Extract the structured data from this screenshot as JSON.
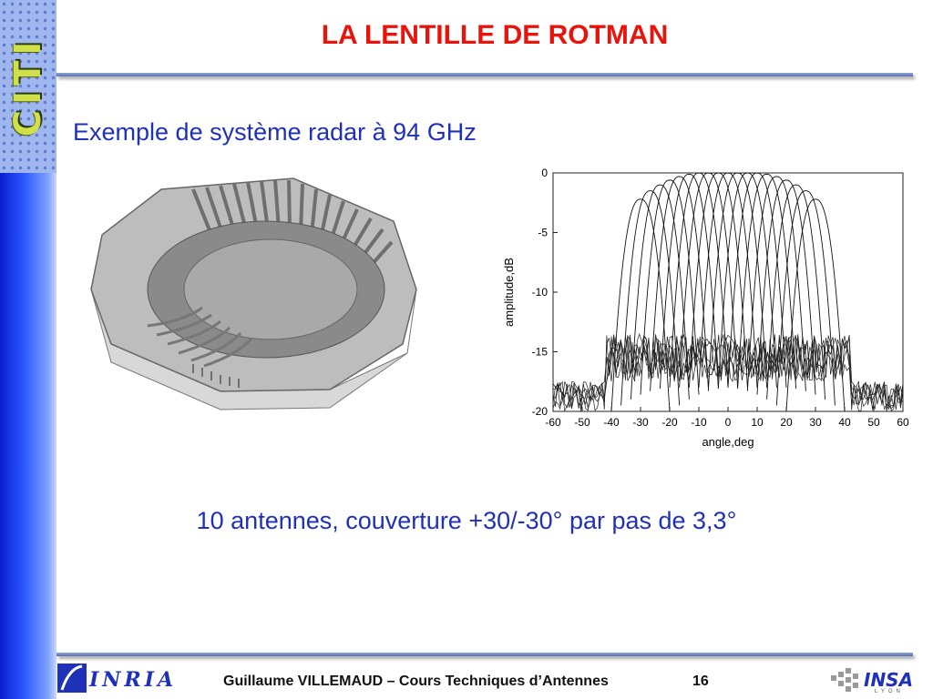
{
  "sidebar": {
    "logo_text": "CITI"
  },
  "slide": {
    "title": "LA LENTILLE DE ROTMAN",
    "subtitle": "Exemple de système radar à 94 GHz",
    "caption": "10 antennes, couverture +30/-30° par pas de 3,3°"
  },
  "footer": {
    "author_text": "Guillaume VILLEMAUD – Cours Techniques d’Antennes",
    "page_number": "16",
    "inria_text": "INRIA",
    "insa_text": "INSA",
    "lyon_text": "LYON"
  },
  "colors": {
    "title": "#e8140c",
    "text": "#1f31b8",
    "sidebar": "#2f5bff"
  },
  "chart_data": {
    "type": "line",
    "xlabel": "angle,deg",
    "ylabel": "amplitude,dB",
    "xlim": [
      -60,
      60
    ],
    "ylim": [
      -20,
      0
    ],
    "x_ticks": [
      -60,
      -50,
      -40,
      -30,
      -20,
      -10,
      0,
      10,
      20,
      30,
      40,
      50,
      60
    ],
    "y_ticks": [
      0,
      -5,
      -10,
      -15,
      -20
    ],
    "beam_peaks_deg": [
      -30,
      -26.7,
      -23.3,
      -20,
      -16.7,
      -13.3,
      -10,
      -6.7,
      -3.3,
      0,
      3.3,
      6.7,
      10,
      13.3,
      16.7,
      20,
      23.3,
      26.7,
      30
    ],
    "peak_level_db": [
      -2.2,
      -1.5,
      -1.0,
      -0.6,
      -0.3,
      -0.1,
      0,
      0,
      0,
      0,
      0,
      0,
      0,
      -0.1,
      -0.3,
      -0.6,
      -1.0,
      -1.5,
      -2.2
    ],
    "mainlobe_halfwidth_deg": 10,
    "sidelobe_floor_db": -16.5
  }
}
